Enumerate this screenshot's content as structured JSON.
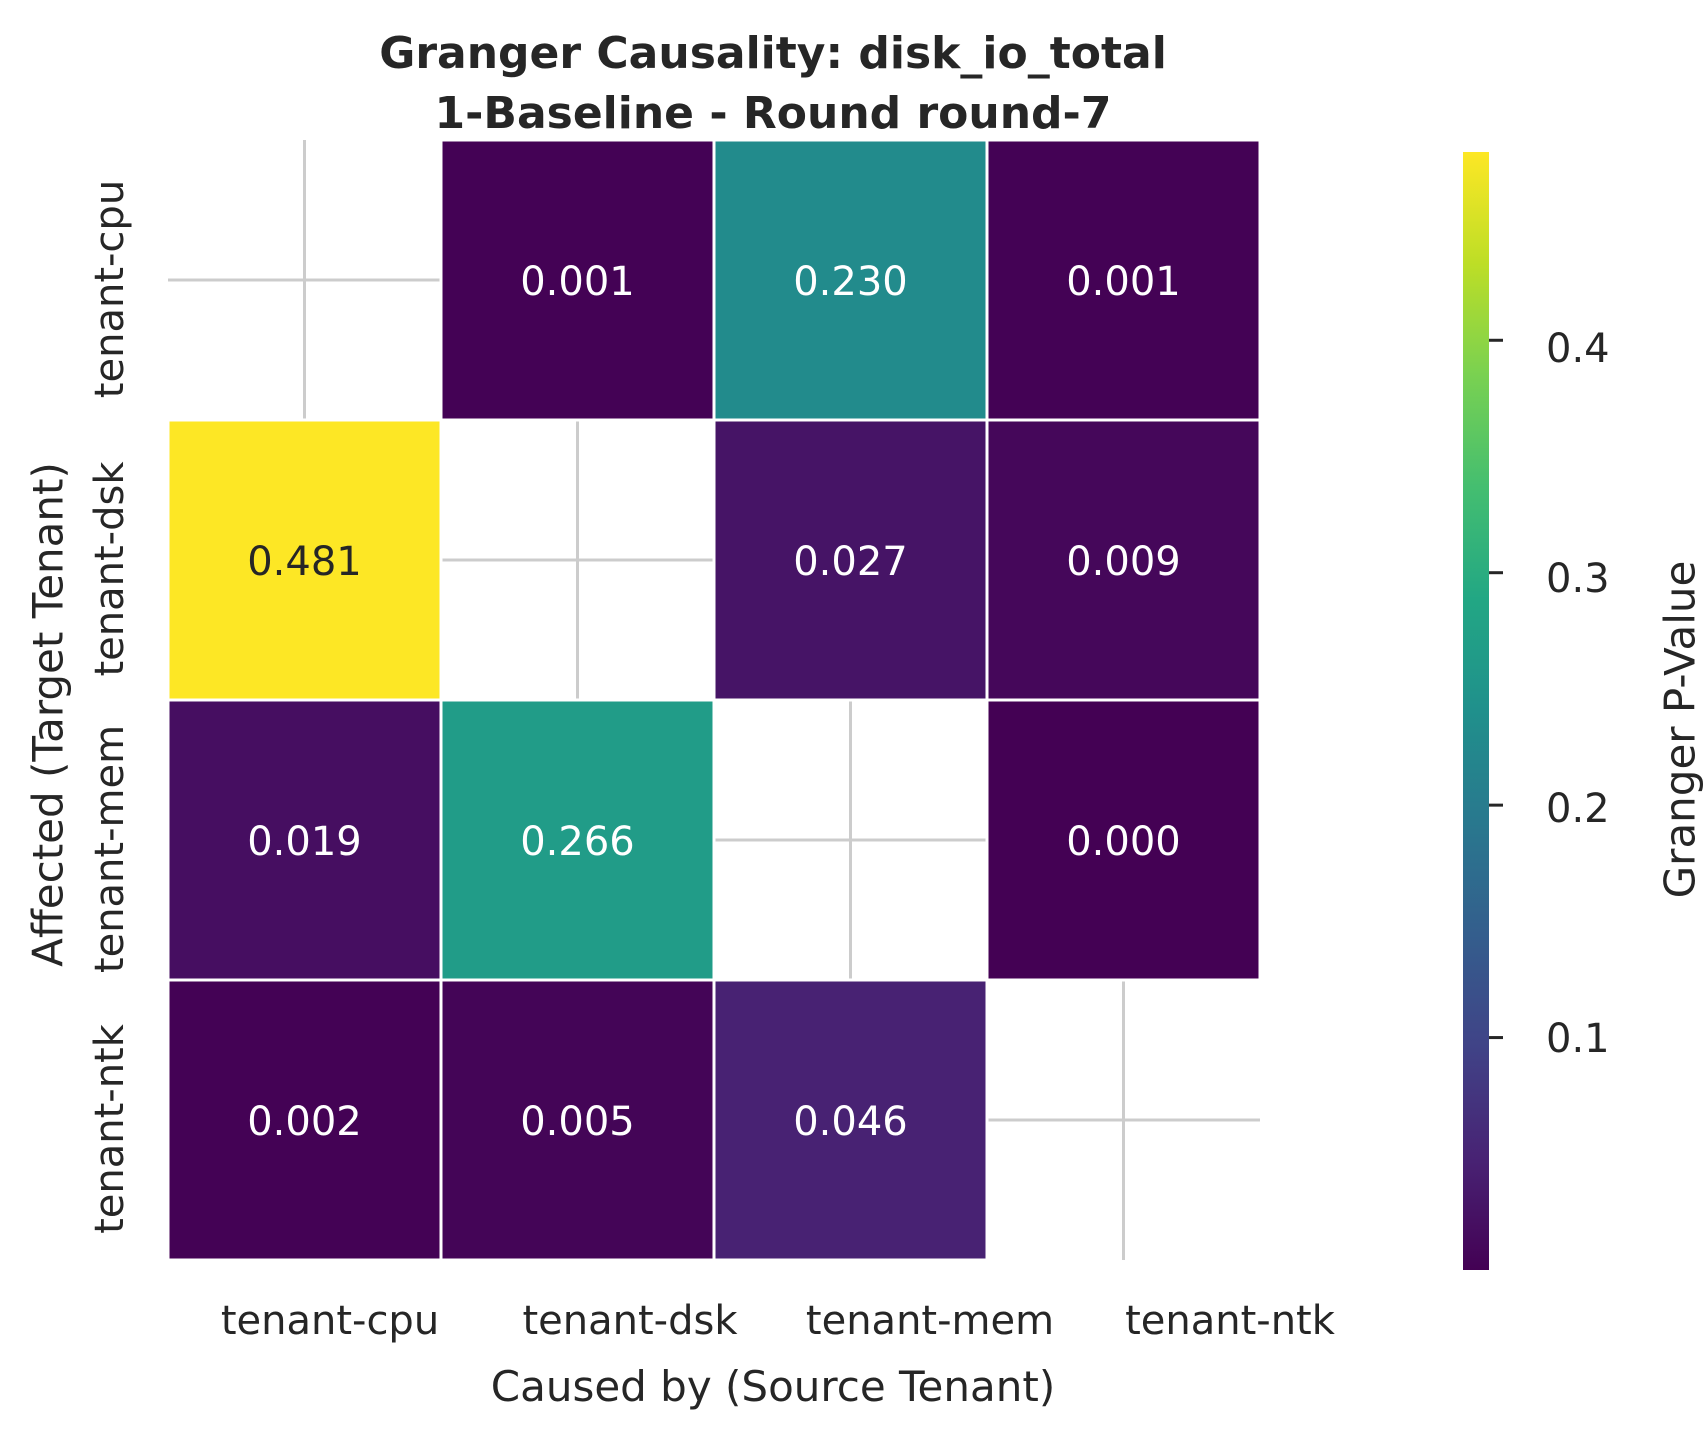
{
  "chart_data": {
    "type": "heatmap",
    "title": "Granger Causality: disk_io_total",
    "subtitle": "1-Baseline - Round round-7",
    "xlabel": "Caused by (Source Tenant)",
    "ylabel": "Affected (Target Tenant)",
    "x_categories": [
      "tenant-cpu",
      "tenant-dsk",
      "tenant-mem",
      "tenant-ntk"
    ],
    "y_categories": [
      "tenant-cpu",
      "tenant-dsk",
      "tenant-mem",
      "tenant-ntk"
    ],
    "values": [
      [
        null,
        0.001,
        0.23,
        0.001
      ],
      [
        0.481,
        null,
        0.027,
        0.009
      ],
      [
        0.019,
        0.266,
        null,
        0.0
      ],
      [
        0.002,
        0.005,
        0.046,
        null
      ]
    ],
    "value_labels": [
      [
        null,
        "0.001",
        "0.230",
        "0.001"
      ],
      [
        "0.481",
        null,
        "0.027",
        "0.009"
      ],
      [
        "0.019",
        "0.266",
        null,
        "0.000"
      ],
      [
        "0.002",
        "0.005",
        "0.046",
        null
      ]
    ],
    "colormap": "viridis",
    "colorbar": {
      "label": "Granger P-Value",
      "range": [
        0.0,
        0.481
      ],
      "ticks": [
        0.1,
        0.2,
        0.3,
        0.4
      ],
      "tick_labels": [
        "0.1",
        "0.2",
        "0.3",
        "0.4"
      ]
    },
    "grid": true,
    "colors": {
      "dark_text": "#262626",
      "light_text": "#ffffff",
      "grid": "#cccccc"
    }
  }
}
